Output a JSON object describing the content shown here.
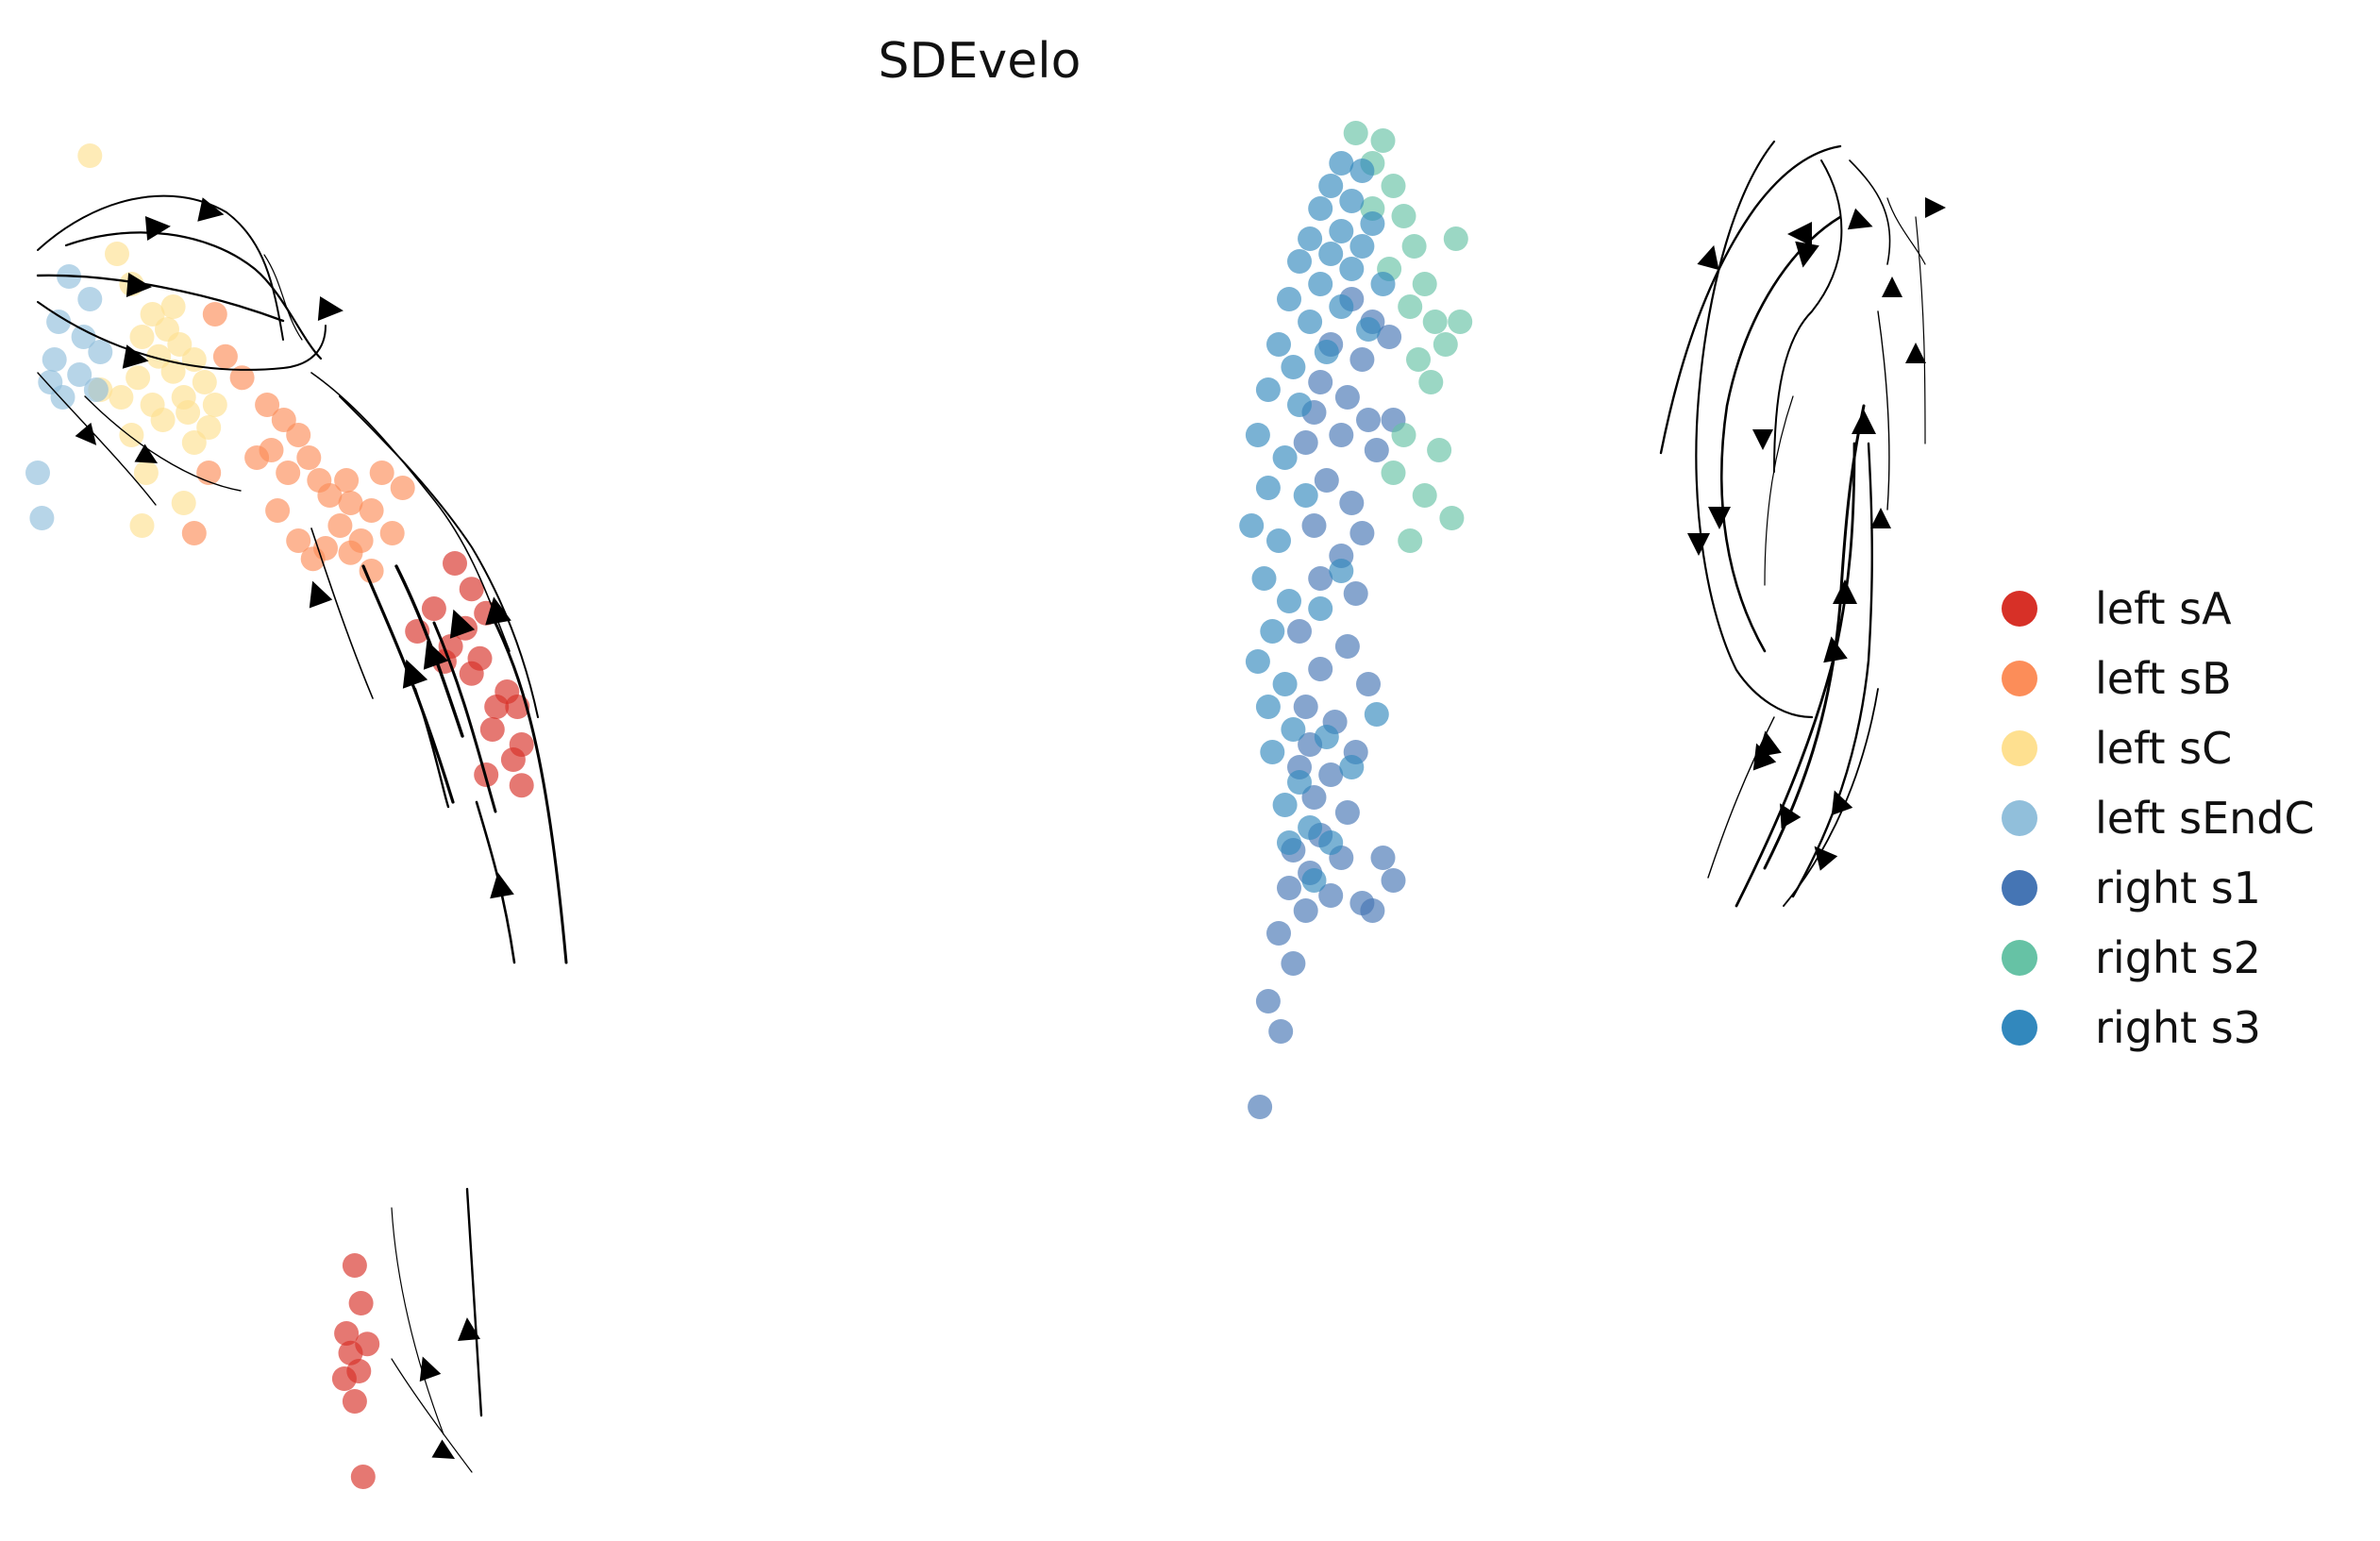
{
  "chart_data": {
    "type": "scatter",
    "title": "SDEvelo",
    "xlabel": "",
    "ylabel": "",
    "axes_visible": false,
    "grid": false,
    "legend_position": "right",
    "overlay": "velocity streamlines with arrowheads",
    "series": [
      {
        "name": "left sA",
        "color": "#d73027",
        "points": [
          [
            2.8,
            6.35
          ],
          [
            2.88,
            6.18
          ],
          [
            2.7,
            6.05
          ],
          [
            2.95,
            6.02
          ],
          [
            2.85,
            5.92
          ],
          [
            2.62,
            5.9
          ],
          [
            2.78,
            5.8
          ],
          [
            2.92,
            5.72
          ],
          [
            2.75,
            5.7
          ],
          [
            2.88,
            5.62
          ],
          [
            3.05,
            5.5
          ],
          [
            3.1,
            5.4
          ],
          [
            3.0,
            5.4
          ],
          [
            2.98,
            5.25
          ],
          [
            3.12,
            5.15
          ],
          [
            3.08,
            5.05
          ],
          [
            2.95,
            4.95
          ],
          [
            3.12,
            4.88
          ],
          [
            2.32,
            1.7
          ],
          [
            2.35,
            1.45
          ],
          [
            2.28,
            1.25
          ],
          [
            2.38,
            1.18
          ],
          [
            2.3,
            1.12
          ],
          [
            2.34,
            1.0
          ],
          [
            2.27,
            0.95
          ],
          [
            2.32,
            0.8
          ],
          [
            2.36,
            0.3
          ]
        ]
      },
      {
        "name": "left sB",
        "color": "#fc8d59",
        "points": [
          [
            1.65,
            8.0
          ],
          [
            1.7,
            7.72
          ],
          [
            1.78,
            7.58
          ],
          [
            1.9,
            7.4
          ],
          [
            1.98,
            7.3
          ],
          [
            2.05,
            7.2
          ],
          [
            1.92,
            7.1
          ],
          [
            2.1,
            7.05
          ],
          [
            1.85,
            7.05
          ],
          [
            2.0,
            6.95
          ],
          [
            2.15,
            6.9
          ],
          [
            2.2,
            6.8
          ],
          [
            2.45,
            6.95
          ],
          [
            2.55,
            6.85
          ],
          [
            2.3,
            6.75
          ],
          [
            2.4,
            6.7
          ],
          [
            2.25,
            6.6
          ],
          [
            2.5,
            6.55
          ],
          [
            2.35,
            6.5
          ],
          [
            2.18,
            6.45
          ],
          [
            1.62,
            6.95
          ],
          [
            1.55,
            6.55
          ],
          [
            2.05,
            6.5
          ],
          [
            2.12,
            6.38
          ],
          [
            2.3,
            6.42
          ],
          [
            2.4,
            6.3
          ],
          [
            1.95,
            6.7
          ],
          [
            2.28,
            6.9
          ]
        ]
      },
      {
        "name": "left sC",
        "color": "#fee090",
        "points": [
          [
            1.05,
            9.05
          ],
          [
            1.18,
            8.4
          ],
          [
            1.25,
            8.2
          ],
          [
            1.35,
            8.0
          ],
          [
            1.42,
            7.9
          ],
          [
            1.3,
            7.85
          ],
          [
            1.48,
            7.8
          ],
          [
            1.38,
            7.72
          ],
          [
            1.55,
            7.7
          ],
          [
            1.45,
            7.62
          ],
          [
            1.28,
            7.58
          ],
          [
            1.6,
            7.55
          ],
          [
            1.5,
            7.45
          ],
          [
            1.35,
            7.4
          ],
          [
            1.2,
            7.45
          ],
          [
            1.52,
            7.35
          ],
          [
            1.4,
            7.3
          ],
          [
            1.62,
            7.25
          ],
          [
            1.25,
            7.2
          ],
          [
            1.1,
            7.5
          ],
          [
            1.55,
            7.15
          ],
          [
            1.32,
            6.95
          ],
          [
            1.5,
            6.75
          ],
          [
            1.3,
            6.6
          ],
          [
            1.45,
            8.05
          ],
          [
            1.65,
            7.4
          ]
        ]
      },
      {
        "name": "left sEndC",
        "color": "#91bfdb",
        "points": [
          [
            0.95,
            8.25
          ],
          [
            1.05,
            8.1
          ],
          [
            0.9,
            7.95
          ],
          [
            1.02,
            7.85
          ],
          [
            0.88,
            7.7
          ],
          [
            1.0,
            7.6
          ],
          [
            0.92,
            7.45
          ],
          [
            1.08,
            7.5
          ],
          [
            0.86,
            7.55
          ],
          [
            0.8,
            6.95
          ],
          [
            0.82,
            6.65
          ],
          [
            1.1,
            7.75
          ]
        ]
      },
      {
        "name": "right s1",
        "color": "#4575b4",
        "points": [
          [
            7.1,
            8.1
          ],
          [
            7.2,
            7.95
          ],
          [
            7.0,
            7.8
          ],
          [
            7.15,
            7.7
          ],
          [
            7.28,
            7.85
          ],
          [
            6.95,
            7.55
          ],
          [
            7.08,
            7.45
          ],
          [
            6.92,
            7.35
          ],
          [
            7.18,
            7.3
          ],
          [
            7.05,
            7.2
          ],
          [
            6.88,
            7.15
          ],
          [
            7.22,
            7.1
          ],
          [
            7.3,
            7.3
          ],
          [
            6.98,
            6.9
          ],
          [
            7.1,
            6.75
          ],
          [
            6.92,
            6.6
          ],
          [
            7.15,
            6.55
          ],
          [
            7.05,
            6.4
          ],
          [
            6.95,
            6.25
          ],
          [
            7.12,
            6.15
          ],
          [
            6.85,
            5.9
          ],
          [
            7.08,
            5.8
          ],
          [
            6.95,
            5.65
          ],
          [
            7.18,
            5.55
          ],
          [
            6.88,
            5.4
          ],
          [
            7.02,
            5.3
          ],
          [
            6.9,
            5.15
          ],
          [
            7.12,
            5.1
          ],
          [
            6.85,
            5.0
          ],
          [
            7.0,
            4.95
          ],
          [
            6.92,
            4.8
          ],
          [
            7.08,
            4.7
          ],
          [
            6.95,
            4.55
          ],
          [
            6.82,
            4.45
          ],
          [
            7.05,
            4.4
          ],
          [
            6.9,
            4.3
          ],
          [
            6.8,
            4.2
          ],
          [
            7.0,
            4.15
          ],
          [
            6.88,
            4.05
          ],
          [
            7.15,
            4.1
          ],
          [
            6.75,
            3.9
          ],
          [
            6.82,
            3.7
          ],
          [
            6.7,
            3.45
          ],
          [
            6.76,
            3.25
          ],
          [
            6.66,
            2.75
          ],
          [
            7.25,
            4.4
          ],
          [
            7.3,
            4.25
          ],
          [
            7.2,
            4.05
          ]
        ]
      },
      {
        "name": "right s2",
        "color": "#66c2a5",
        "points": [
          [
            7.12,
            9.2
          ],
          [
            7.25,
            9.15
          ],
          [
            7.2,
            9.0
          ],
          [
            7.3,
            8.85
          ],
          [
            7.35,
            8.65
          ],
          [
            7.4,
            8.45
          ],
          [
            7.28,
            8.3
          ],
          [
            7.45,
            8.2
          ],
          [
            7.38,
            8.05
          ],
          [
            7.5,
            7.95
          ],
          [
            7.55,
            7.8
          ],
          [
            7.42,
            7.7
          ],
          [
            7.48,
            7.55
          ],
          [
            7.35,
            7.2
          ],
          [
            7.52,
            7.1
          ],
          [
            7.3,
            6.95
          ],
          [
            7.45,
            6.8
          ],
          [
            7.58,
            6.65
          ],
          [
            7.62,
            7.95
          ],
          [
            7.2,
            8.7
          ],
          [
            7.6,
            8.5
          ],
          [
            7.38,
            6.5
          ]
        ]
      },
      {
        "name": "right s3",
        "color": "#3288bd",
        "points": [
          [
            7.05,
            9.0
          ],
          [
            7.15,
            8.95
          ],
          [
            7.0,
            8.85
          ],
          [
            7.1,
            8.75
          ],
          [
            6.95,
            8.7
          ],
          [
            7.2,
            8.6
          ],
          [
            7.05,
            8.55
          ],
          [
            6.9,
            8.5
          ],
          [
            7.15,
            8.45
          ],
          [
            7.0,
            8.4
          ],
          [
            6.85,
            8.35
          ],
          [
            7.1,
            8.3
          ],
          [
            6.95,
            8.2
          ],
          [
            7.25,
            8.2
          ],
          [
            6.8,
            8.1
          ],
          [
            7.05,
            8.05
          ],
          [
            6.9,
            7.95
          ],
          [
            7.18,
            7.9
          ],
          [
            6.75,
            7.8
          ],
          [
            6.98,
            7.75
          ],
          [
            6.82,
            7.65
          ],
          [
            6.7,
            7.5
          ],
          [
            6.85,
            7.4
          ],
          [
            6.65,
            7.2
          ],
          [
            6.78,
            7.05
          ],
          [
            6.7,
            6.85
          ],
          [
            6.62,
            6.6
          ],
          [
            6.75,
            6.5
          ],
          [
            6.68,
            6.25
          ],
          [
            6.8,
            6.1
          ],
          [
            6.72,
            5.9
          ],
          [
            6.65,
            5.7
          ],
          [
            6.78,
            5.55
          ],
          [
            6.7,
            5.4
          ],
          [
            6.82,
            5.25
          ],
          [
            6.72,
            5.1
          ],
          [
            6.85,
            4.9
          ],
          [
            6.78,
            4.75
          ],
          [
            6.9,
            4.6
          ],
          [
            6.8,
            4.5
          ],
          [
            6.92,
            4.25
          ],
          [
            7.0,
            4.5
          ],
          [
            7.1,
            5.0
          ],
          [
            6.98,
            5.2
          ],
          [
            7.22,
            5.35
          ],
          [
            6.95,
            6.05
          ],
          [
            7.05,
            6.3
          ],
          [
            6.88,
            6.8
          ]
        ]
      }
    ],
    "legend": [
      "left sA",
      "left sB",
      "left sC",
      "left sEndC",
      "right s1",
      "right s2",
      "right s3"
    ]
  }
}
